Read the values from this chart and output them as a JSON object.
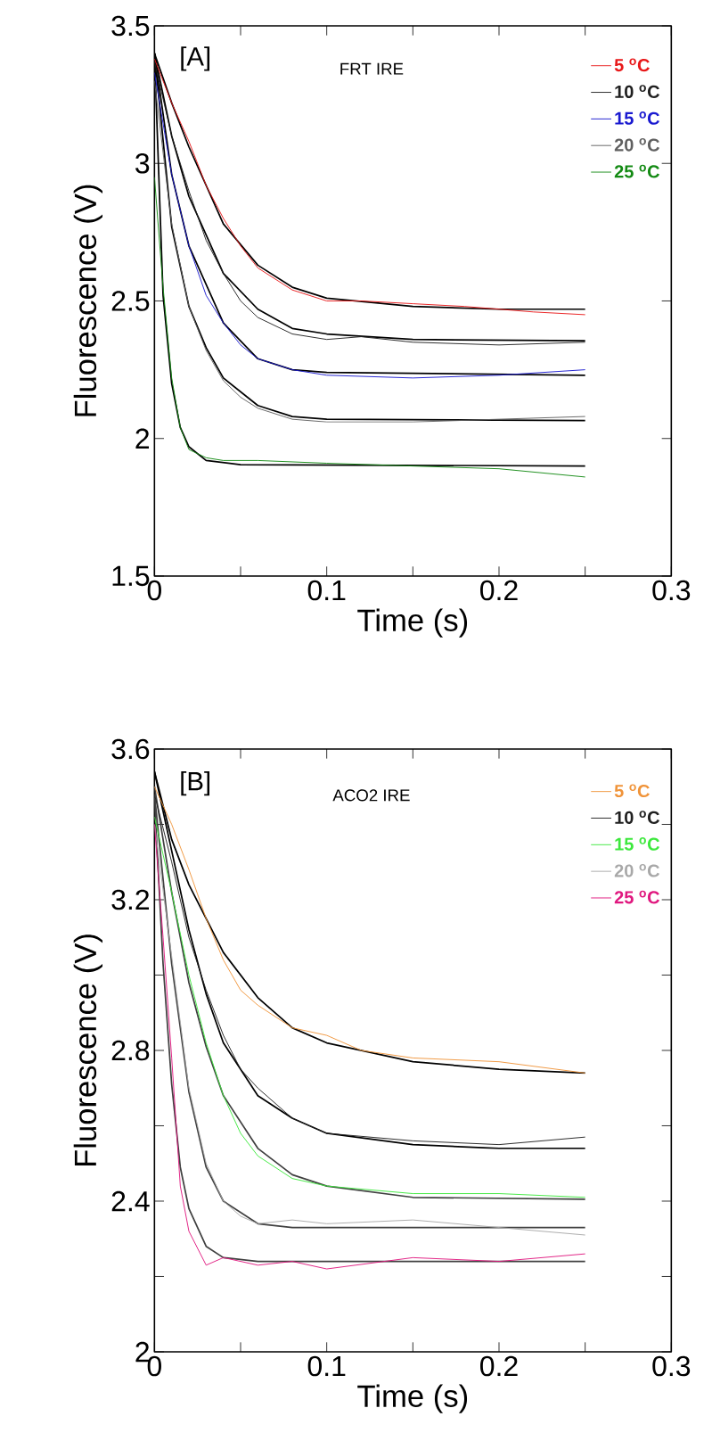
{
  "chart_data": [
    {
      "type": "line",
      "xlabel": "Time (s)",
      "ylabel": "Fluorescence (V)",
      "annotations": [
        "[A]",
        "FRT IRE"
      ],
      "legend": "top right",
      "xlim": [
        0,
        0.3
      ],
      "xticks": [
        0,
        {
          "value": 0.05,
          "label": null
        },
        0.1,
        {
          "value": 0.15,
          "label": null
        },
        0.2,
        {
          "value": 0.25,
          "label": null
        },
        0.3
      ],
      "ylim": [
        1.5,
        3.5
      ],
      "yticks": [
        1.5,
        2,
        2.5,
        3,
        3.5
      ],
      "series": [
        {
          "name": "5 $^{o}$C",
          "color": "#e8191a",
          "x": [
            0,
            0.01,
            0.02,
            0.03,
            0.04,
            0.05,
            0.06,
            0.08,
            0.1,
            0.12,
            0.15,
            0.18,
            0.2,
            0.22,
            0.25
          ],
          "values": [
            3.38,
            3.22,
            3.08,
            2.92,
            2.8,
            2.7,
            2.62,
            2.54,
            2.5,
            2.5,
            2.49,
            2.48,
            2.47,
            2.46,
            2.45
          ]
        },
        {
          "name": "10 $^{o}$C",
          "color": "#202020",
          "x": [
            0,
            0.01,
            0.02,
            0.03,
            0.04,
            0.05,
            0.06,
            0.08,
            0.1,
            0.12,
            0.15,
            0.2,
            0.25
          ],
          "values": [
            3.37,
            3.1,
            2.9,
            2.72,
            2.6,
            2.5,
            2.44,
            2.38,
            2.36,
            2.37,
            2.35,
            2.34,
            2.35
          ]
        },
        {
          "name": "15 $^{o}$C",
          "color": "#1a1ad0",
          "x": [
            0,
            0.01,
            0.02,
            0.03,
            0.04,
            0.05,
            0.06,
            0.08,
            0.1,
            0.15,
            0.2,
            0.25
          ],
          "values": [
            3.33,
            2.96,
            2.7,
            2.52,
            2.42,
            2.34,
            2.29,
            2.25,
            2.23,
            2.22,
            2.23,
            2.25
          ]
        },
        {
          "name": "20 $^{o}$C",
          "color": "#606060",
          "x": [
            0,
            0.01,
            0.02,
            0.03,
            0.04,
            0.05,
            0.06,
            0.08,
            0.1,
            0.15,
            0.2,
            0.25
          ],
          "values": [
            3.3,
            2.78,
            2.48,
            2.32,
            2.21,
            2.15,
            2.11,
            2.07,
            2.06,
            2.06,
            2.07,
            2.08
          ]
        },
        {
          "name": "25 $^{o}$C",
          "color": "#138a13",
          "x": [
            0,
            0.005,
            0.01,
            0.015,
            0.02,
            0.03,
            0.04,
            0.06,
            0.1,
            0.15,
            0.2,
            0.25
          ],
          "values": [
            2.95,
            2.55,
            2.22,
            2.04,
            1.96,
            1.93,
            1.92,
            1.92,
            1.91,
            1.9,
            1.89,
            1.86
          ]
        },
        {
          "color": "#000000",
          "x": [
            0,
            0.01,
            0.02,
            0.04,
            0.06,
            0.08,
            0.1,
            0.15,
            0.2,
            0.25
          ],
          "values": [
            3.4,
            3.22,
            3.06,
            2.78,
            2.63,
            2.55,
            2.51,
            2.48,
            2.47,
            2.47
          ]
        },
        {
          "color": "#000000",
          "x": [
            0,
            0.01,
            0.02,
            0.04,
            0.06,
            0.08,
            0.1,
            0.15,
            0.25
          ],
          "values": [
            3.4,
            3.1,
            2.88,
            2.6,
            2.47,
            2.4,
            2.38,
            2.36,
            2.355
          ]
        },
        {
          "color": "#000000",
          "x": [
            0,
            0.01,
            0.02,
            0.04,
            0.06,
            0.08,
            0.1,
            0.25
          ],
          "values": [
            3.4,
            2.96,
            2.7,
            2.42,
            2.29,
            2.25,
            2.24,
            2.23
          ]
        },
        {
          "color": "#000000",
          "x": [
            0,
            0.01,
            0.02,
            0.03,
            0.04,
            0.06,
            0.08,
            0.1,
            0.25
          ],
          "values": [
            3.4,
            2.77,
            2.48,
            2.33,
            2.22,
            2.12,
            2.08,
            2.07,
            2.065
          ]
        },
        {
          "color": "#000000",
          "x": [
            0,
            0.005,
            0.01,
            0.015,
            0.02,
            0.03,
            0.05,
            0.25
          ],
          "values": [
            3.4,
            2.52,
            2.2,
            2.04,
            1.97,
            1.92,
            1.905,
            1.9
          ]
        }
      ]
    },
    {
      "type": "line",
      "xlabel": "Time (s)",
      "ylabel": "Fluorescence (V)",
      "annotations": [
        "[B]",
        "ACO2 IRE"
      ],
      "legend": "top right",
      "xlim": [
        0,
        0.3
      ],
      "xticks": [
        0,
        {
          "value": 0.05,
          "label": null
        },
        0.1,
        {
          "value": 0.15,
          "label": null
        },
        0.2,
        {
          "value": 0.25,
          "label": null
        },
        0.3
      ],
      "ylim": [
        2,
        3.6
      ],
      "yticks": [
        2,
        {
          "value": 2.2,
          "label": null
        },
        2.4,
        {
          "value": 2.6,
          "label": null
        },
        2.8,
        {
          "value": 3.0,
          "label": null
        },
        3.2,
        {
          "value": 3.4,
          "label": null
        },
        3.6
      ],
      "series": [
        {
          "name": "5 $^{o}$C",
          "color": "#f0943a",
          "x": [
            0,
            0.01,
            0.02,
            0.03,
            0.04,
            0.05,
            0.06,
            0.08,
            0.1,
            0.12,
            0.15,
            0.2,
            0.25
          ],
          "values": [
            3.5,
            3.4,
            3.28,
            3.15,
            3.04,
            2.96,
            2.92,
            2.86,
            2.84,
            2.8,
            2.78,
            2.77,
            2.74
          ]
        },
        {
          "name": "10 $^{o}$C",
          "color": "#202020",
          "x": [
            0,
            0.01,
            0.02,
            0.03,
            0.04,
            0.05,
            0.06,
            0.08,
            0.1,
            0.15,
            0.2,
            0.25
          ],
          "values": [
            3.48,
            3.3,
            3.1,
            2.96,
            2.84,
            2.75,
            2.7,
            2.62,
            2.58,
            2.56,
            2.55,
            2.57
          ]
        },
        {
          "name": "15 $^{o}$C",
          "color": "#3de83d",
          "x": [
            0,
            0.01,
            0.02,
            0.03,
            0.04,
            0.05,
            0.06,
            0.08,
            0.1,
            0.15,
            0.2,
            0.25
          ],
          "values": [
            3.42,
            3.22,
            3.0,
            2.82,
            2.68,
            2.58,
            2.52,
            2.46,
            2.44,
            2.42,
            2.42,
            2.41
          ]
        },
        {
          "name": "20 $^{o}$C",
          "color": "#a8a8a8",
          "x": [
            0,
            0.01,
            0.02,
            0.03,
            0.04,
            0.05,
            0.06,
            0.08,
            0.1,
            0.15,
            0.2,
            0.25
          ],
          "values": [
            3.4,
            3.05,
            2.7,
            2.5,
            2.4,
            2.36,
            2.34,
            2.35,
            2.34,
            2.35,
            2.33,
            2.31
          ]
        },
        {
          "name": "25 $^{o}$C",
          "color": "#e0187f",
          "x": [
            0,
            0.005,
            0.01,
            0.015,
            0.02,
            0.03,
            0.04,
            0.06,
            0.08,
            0.1,
            0.15,
            0.2,
            0.25
          ],
          "values": [
            3.4,
            3.1,
            2.78,
            2.44,
            2.32,
            2.23,
            2.25,
            2.23,
            2.24,
            2.22,
            2.25,
            2.24,
            2.26
          ]
        },
        {
          "color": "#000000",
          "x": [
            0,
            0.01,
            0.02,
            0.04,
            0.06,
            0.08,
            0.1,
            0.15,
            0.2,
            0.25
          ],
          "values": [
            3.54,
            3.36,
            3.24,
            3.06,
            2.94,
            2.86,
            2.82,
            2.77,
            2.75,
            2.74
          ]
        },
        {
          "color": "#000000",
          "x": [
            0,
            0.01,
            0.02,
            0.03,
            0.04,
            0.06,
            0.08,
            0.1,
            0.15,
            0.2,
            0.25
          ],
          "values": [
            3.54,
            3.33,
            3.12,
            2.95,
            2.82,
            2.68,
            2.62,
            2.58,
            2.55,
            2.54,
            2.54
          ]
        },
        {
          "color": "#404040",
          "x": [
            0,
            0.01,
            0.02,
            0.03,
            0.04,
            0.06,
            0.08,
            0.1,
            0.15,
            0.25
          ],
          "values": [
            3.5,
            3.22,
            2.98,
            2.81,
            2.68,
            2.54,
            2.47,
            2.44,
            2.41,
            2.405
          ]
        },
        {
          "color": "#404040",
          "x": [
            0,
            0.01,
            0.02,
            0.03,
            0.04,
            0.06,
            0.08,
            0.25
          ],
          "values": [
            3.48,
            3.03,
            2.69,
            2.49,
            2.4,
            2.34,
            2.33,
            2.33
          ]
        },
        {
          "color": "#404040",
          "x": [
            0,
            0.005,
            0.01,
            0.015,
            0.02,
            0.03,
            0.04,
            0.06,
            0.25
          ],
          "values": [
            3.47,
            3.03,
            2.71,
            2.49,
            2.38,
            2.28,
            2.25,
            2.24,
            2.24
          ]
        }
      ]
    }
  ]
}
